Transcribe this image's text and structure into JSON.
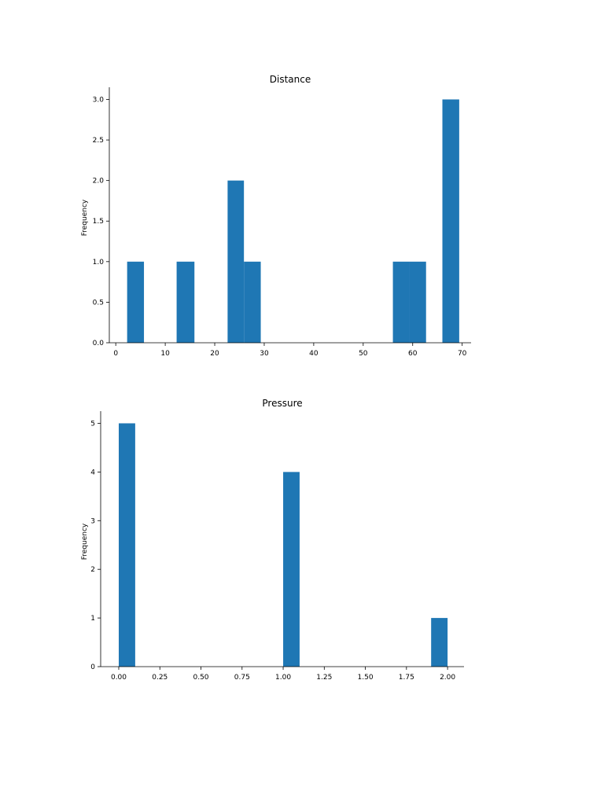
{
  "chart_data": [
    {
      "type": "bar",
      "title": "Distance",
      "xlabel": "",
      "ylabel": "Frequency",
      "xlim": [
        -1.3,
        71.8
      ],
      "ylim": [
        0,
        3.15
      ],
      "xticks": [
        0,
        10,
        20,
        30,
        40,
        50,
        60,
        70
      ],
      "xtick_labels": [
        "0",
        "10",
        "20",
        "30",
        "40",
        "50",
        "60",
        "70"
      ],
      "yticks": [
        0,
        0.5,
        1,
        1.5,
        2,
        2.5,
        3
      ],
      "ytick_labels": [
        "0.0",
        "0.5",
        "1.0",
        "1.5",
        "2.0",
        "2.5",
        "3.0"
      ],
      "bins": [
        {
          "x0": 2.3,
          "x1": 5.7,
          "count": 1
        },
        {
          "x0": 12.3,
          "x1": 15.9,
          "count": 1
        },
        {
          "x0": 22.6,
          "x1": 25.9,
          "count": 2
        },
        {
          "x0": 25.9,
          "x1": 29.3,
          "count": 1
        },
        {
          "x0": 56.0,
          "x1": 59.4,
          "count": 1
        },
        {
          "x0": 59.4,
          "x1": 62.7,
          "count": 1
        },
        {
          "x0": 66.0,
          "x1": 69.4,
          "count": 3
        }
      ],
      "color": "#1f77b4"
    },
    {
      "type": "bar",
      "title": "Pressure",
      "xlabel": "",
      "ylabel": "Frequency",
      "xlim": [
        -0.11,
        2.1
      ],
      "ylim": [
        0,
        5.25
      ],
      "xticks": [
        0,
        0.25,
        0.5,
        0.75,
        1.0,
        1.25,
        1.5,
        1.75,
        2.0
      ],
      "xtick_labels": [
        "0.00",
        "0.25",
        "0.50",
        "0.75",
        "1.00",
        "1.25",
        "1.50",
        "1.75",
        "2.00"
      ],
      "yticks": [
        0,
        1,
        2,
        3,
        4,
        5
      ],
      "ytick_labels": [
        "0",
        "1",
        "2",
        "3",
        "4",
        "5"
      ],
      "bins": [
        {
          "x0": 0.0,
          "x1": 0.1,
          "count": 5
        },
        {
          "x0": 1.0,
          "x1": 1.1,
          "count": 4
        },
        {
          "x0": 1.9,
          "x1": 2.0,
          "count": 1
        }
      ],
      "color": "#1f77b4"
    }
  ]
}
